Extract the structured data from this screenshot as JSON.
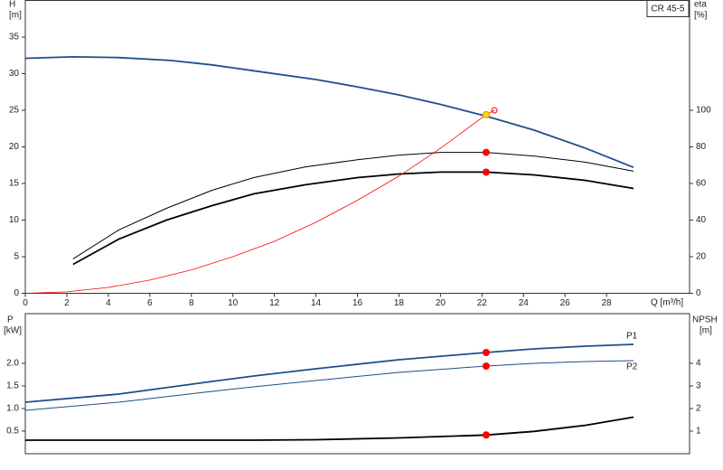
{
  "chart_data": [
    {
      "type": "line",
      "title": "CR 45-5",
      "xlabel": "Q [m³/h]",
      "ylabel": "H",
      "ylabel_unit": "[m]",
      "y2label": "eta",
      "y2label_unit": "[%]",
      "xlim": [
        0,
        32
      ],
      "ylim": [
        0,
        40
      ],
      "y2lim": [
        0,
        160
      ],
      "xticks": [
        0,
        2,
        4,
        6,
        8,
        10,
        12,
        14,
        16,
        18,
        20,
        22,
        24,
        26,
        28
      ],
      "yticks": [
        0,
        5,
        10,
        15,
        20,
        25,
        30,
        35
      ],
      "y2ticks": [
        0,
        20,
        40,
        60,
        80,
        100
      ],
      "series": [
        {
          "color": "#1f4e8c",
          "axis": "y",
          "x": [
            0,
            2.3,
            4.5,
            7,
            9,
            11,
            14,
            16,
            18,
            20,
            22.2,
            24.5,
            27,
            29.3
          ],
          "values": [
            32.1,
            32.3,
            32.2,
            31.8,
            31.2,
            30.4,
            29.2,
            28.2,
            27.1,
            25.8,
            24.2,
            22.3,
            19.8,
            17.2
          ]
        },
        {
          "color": "#000000",
          "axis": "y2",
          "x": [
            2.3,
            4.5,
            6.8,
            9,
            11,
            13.5,
            16,
            18,
            20,
            22.2,
            24.5,
            27,
            29.3
          ],
          "values": [
            18.8,
            34.6,
            46.4,
            56.3,
            63.2,
            69.1,
            73,
            75.5,
            77,
            77,
            75,
            71.6,
            66.7
          ]
        },
        {
          "color": "#000000",
          "axis": "y2",
          "x": [
            2.3,
            4.5,
            6.8,
            9,
            11,
            13.5,
            16,
            18,
            20,
            22.2,
            24.5,
            27,
            29.3
          ],
          "values": [
            15.8,
            29.6,
            40,
            47.9,
            54.3,
            59.3,
            63.2,
            65.2,
            66.2,
            66.2,
            64.7,
            61.7,
            57.3
          ]
        },
        {
          "color": "#ff0000",
          "axis": "y",
          "x": [
            0,
            2,
            4,
            6,
            8,
            10,
            12,
            14,
            16,
            18,
            20,
            22.2,
            22.6
          ],
          "values": [
            0,
            0.2,
            0.8,
            1.8,
            3.2,
            5,
            7.1,
            9.7,
            12.7,
            16,
            19.8,
            24.4,
            25
          ]
        }
      ],
      "markers": [
        {
          "x": 22.2,
          "y": 77,
          "axis": "y2",
          "color": "#ff0000"
        },
        {
          "x": 22.2,
          "y": 66.2,
          "axis": "y2",
          "color": "#ff0000"
        },
        {
          "x": 22.2,
          "y": 24.4,
          "axis": "y",
          "color": "#ffd700"
        },
        {
          "x": 22.6,
          "y": 25,
          "axis": "y",
          "color": "#ff0000",
          "hollow": true
        }
      ]
    },
    {
      "type": "line",
      "ylabel": "P",
      "ylabel_unit": "[kW]",
      "y2label": "NPSH",
      "y2label_unit": "[m]",
      "xlim": [
        0,
        32
      ],
      "ylim": [
        0,
        3.1
      ],
      "y2lim": [
        0,
        6.2
      ],
      "yticks": [
        0.5,
        {
          "value": 1,
          "label": "1.0"
        },
        1.5,
        {
          "value": 2,
          "label": "2.0"
        }
      ],
      "y2ticks": [
        1,
        2,
        3,
        4
      ],
      "series": [
        {
          "name": "P1",
          "color": "#1f4e8c",
          "axis": "y",
          "x": [
            0,
            4.5,
            9,
            11,
            14,
            18,
            22.2,
            24.5,
            27,
            29.3
          ],
          "values": [
            1.14,
            1.32,
            1.6,
            1.72,
            1.88,
            2.08,
            2.24,
            2.32,
            2.38,
            2.42
          ]
        },
        {
          "name": "P2",
          "color": "#1f4e8c",
          "axis": "y",
          "x": [
            0,
            4.5,
            9,
            11,
            14,
            18,
            22.2,
            24.5,
            27,
            29.3
          ],
          "values": [
            0.96,
            1.14,
            1.38,
            1.48,
            1.62,
            1.8,
            1.94,
            2,
            2.04,
            2.06
          ]
        },
        {
          "color": "#000000",
          "axis": "y2",
          "x": [
            0,
            5,
            11,
            14,
            18,
            22.2,
            24.5,
            27,
            29.3
          ],
          "values": [
            0.6,
            0.6,
            0.6,
            0.62,
            0.7,
            0.83,
            0.99,
            1.26,
            1.62
          ]
        }
      ],
      "markers": [
        {
          "x": 22.2,
          "y": 2.24,
          "axis": "y",
          "color": "#ff0000"
        },
        {
          "x": 22.2,
          "y": 1.94,
          "axis": "y",
          "color": "#ff0000"
        },
        {
          "x": 22.2,
          "y": 0.83,
          "axis": "y2",
          "color": "#ff0000"
        }
      ]
    }
  ]
}
